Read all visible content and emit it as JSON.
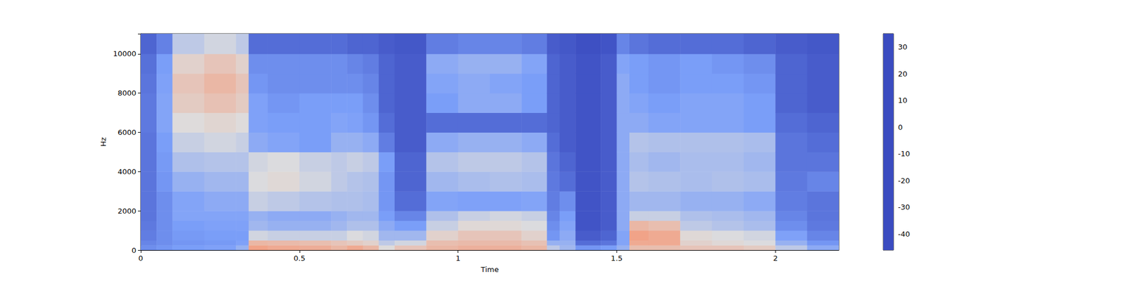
{
  "chart_data": {
    "type": "spectrogram",
    "xlabel": "Time",
    "ylabel": "Hz",
    "xlim": [
      0,
      2.2
    ],
    "xticks": [
      0,
      0.5,
      1,
      1.5,
      2
    ],
    "ylim": [
      0,
      11025
    ],
    "yticks": [
      0,
      2000,
      4000,
      6000,
      8000,
      10000
    ],
    "time_edges": [
      0,
      0.05,
      0.1,
      0.2,
      0.3,
      0.34,
      0.4,
      0.5,
      0.6,
      0.65,
      0.7,
      0.75,
      0.8,
      0.9,
      1.0,
      1.1,
      1.2,
      1.28,
      1.32,
      1.37,
      1.45,
      1.5,
      1.54,
      1.6,
      1.7,
      1.8,
      1.9,
      2.0,
      2.1,
      2.2
    ],
    "freq_edges": [
      0,
      250,
      500,
      1000,
      1500,
      2000,
      3000,
      4000,
      5000,
      6000,
      7000,
      8000,
      9000,
      10000,
      11025
    ],
    "cells": [
      [
        -30,
        -32,
        -34,
        -35,
        -36,
        -36,
        -36,
        -36,
        -36,
        -35,
        -35,
        -36,
        -37,
        -40
      ],
      [
        -28,
        -30,
        -30,
        -30,
        -30,
        -30,
        -28,
        -27,
        -26,
        -24,
        -24,
        -25,
        -26,
        -33
      ],
      [
        -26,
        -28,
        -27,
        -26,
        -24,
        -24,
        -20,
        -15,
        -10,
        -5,
        0,
        2,
        -2,
        -12
      ],
      [
        -25,
        -27,
        -26,
        -25,
        -24,
        -22,
        -18,
        -14,
        -8,
        -3,
        3,
        6,
        2,
        -8
      ],
      [
        -20,
        -25,
        -26,
        -25,
        -24,
        -22,
        -18,
        -14,
        -10,
        -5,
        0,
        2,
        -2,
        -12
      ],
      [
        12,
        6,
        -8,
        -18,
        -20,
        -10,
        -6,
        -8,
        -22,
        -25,
        -25,
        -28,
        -30,
        -38
      ],
      [
        10,
        5,
        -10,
        -20,
        -22,
        -12,
        -4,
        -6,
        -24,
        -26,
        -28,
        -30,
        -30,
        -38
      ],
      [
        9,
        4,
        -10,
        -20,
        -22,
        -14,
        -8,
        -10,
        -26,
        -26,
        -26,
        -30,
        -30,
        -38
      ],
      [
        6,
        2,
        -10,
        -18,
        -20,
        -15,
        -12,
        -12,
        -20,
        -24,
        -26,
        -30,
        -30,
        -38
      ],
      [
        10,
        0,
        -6,
        -15,
        -18,
        -15,
        -14,
        -10,
        -20,
        -25,
        -26,
        -30,
        -32,
        -40
      ],
      [
        6,
        -2,
        -8,
        -15,
        -18,
        -16,
        -15,
        -12,
        -22,
        -28,
        -30,
        -32,
        -34,
        -40
      ],
      [
        -5,
        -12,
        -18,
        -22,
        -26,
        -28,
        -28,
        -26,
        -34,
        -38,
        -40,
        -40,
        -40,
        -42
      ],
      [
        2,
        -8,
        -18,
        -26,
        -32,
        -38,
        -40,
        -40,
        -42,
        -42,
        -42,
        -42,
        -42,
        -43
      ],
      [
        6,
        4,
        -2,
        -10,
        -15,
        -24,
        -18,
        -14,
        -22,
        -38,
        -26,
        -24,
        -22,
        -34
      ],
      [
        8,
        5,
        2,
        -4,
        -10,
        -25,
        -16,
        -12,
        -20,
        -38,
        -22,
        -22,
        -20,
        -32
      ],
      [
        8,
        5,
        2,
        -4,
        -8,
        -25,
        -15,
        -12,
        -20,
        -38,
        -22,
        -24,
        -20,
        -32
      ],
      [
        6,
        3,
        -2,
        -6,
        -10,
        -24,
        -16,
        -14,
        -22,
        -38,
        -26,
        -26,
        -24,
        -34
      ],
      [
        -12,
        -20,
        -28,
        -30,
        -32,
        -34,
        -35,
        -36,
        -38,
        -40,
        -40,
        -40,
        -40,
        -42
      ],
      [
        -18,
        -20,
        -22,
        -24,
        -26,
        -30,
        -38,
        -40,
        -42,
        -42,
        -42,
        -42,
        -42,
        -43
      ],
      [
        -28,
        -38,
        -42,
        -44,
        -44,
        -44,
        -44,
        -44,
        -44,
        -44,
        -44,
        -44,
        -44,
        -45
      ],
      [
        -26,
        -36,
        -40,
        -42,
        -42,
        -42,
        -42,
        -42,
        -42,
        -42,
        -42,
        -42,
        -42,
        -44
      ],
      [
        -20,
        -24,
        -24,
        -22,
        -22,
        -22,
        -22,
        -22,
        -22,
        -22,
        -22,
        -22,
        -24,
        -32
      ],
      [
        4,
        10,
        12,
        6,
        -10,
        -18,
        -14,
        -16,
        -14,
        -22,
        -24,
        -26,
        -26,
        -36
      ],
      [
        4,
        10,
        10,
        4,
        -10,
        -18,
        -15,
        -18,
        -15,
        -24,
        -26,
        -28,
        -28,
        -38
      ],
      [
        2,
        -2,
        -4,
        -12,
        -15,
        -20,
        -16,
        -16,
        -15,
        -24,
        -24,
        -26,
        -26,
        -38
      ],
      [
        2,
        -4,
        -6,
        -14,
        -16,
        -20,
        -15,
        -16,
        -15,
        -24,
        -24,
        -26,
        -28,
        -38
      ],
      [
        0,
        -6,
        -8,
        -16,
        -18,
        -22,
        -16,
        -18,
        -16,
        -26,
        -26,
        -28,
        -30,
        -40
      ],
      [
        -12,
        -20,
        -25,
        -30,
        -32,
        -34,
        -35,
        -36,
        -36,
        -38,
        -40,
        -40,
        -40,
        -42
      ],
      [
        -22,
        -28,
        -32,
        -35,
        -36,
        -36,
        -32,
        -36,
        -38,
        -40,
        -42,
        -42,
        -42,
        -43
      ]
    ],
    "colorbar": {
      "range": [
        -46,
        35
      ],
      "ticks": [
        -40,
        -30,
        -20,
        -10,
        0,
        10,
        20,
        30
      ]
    },
    "grid": false
  }
}
